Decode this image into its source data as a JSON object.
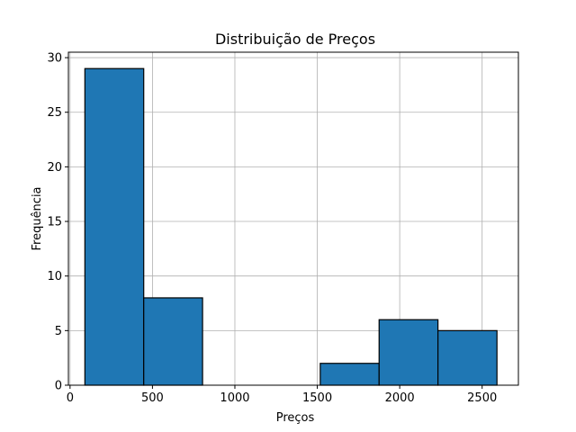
{
  "chart_data": {
    "type": "bar",
    "title": "Distribuição de Preços",
    "xlabel": "Preços",
    "ylabel": "Frequência",
    "xlim": [
      -10,
      2720
    ],
    "ylim": [
      0,
      30.5
    ],
    "grid": true,
    "bar_color": "#1f77b4",
    "edge_color": "#000000",
    "x_ticks": [
      0,
      500,
      1000,
      1500,
      2000,
      2500
    ],
    "y_ticks": [
      0,
      5,
      10,
      15,
      20,
      25,
      30
    ],
    "bins": [
      {
        "start": 90,
        "end": 447,
        "count": 29
      },
      {
        "start": 447,
        "end": 804,
        "count": 8
      },
      {
        "start": 804,
        "end": 1161,
        "count": 0
      },
      {
        "start": 1161,
        "end": 1518,
        "count": 0
      },
      {
        "start": 1518,
        "end": 1875,
        "count": 2
      },
      {
        "start": 1875,
        "end": 2232,
        "count": 6
      },
      {
        "start": 2232,
        "end": 2590,
        "count": 5
      }
    ]
  }
}
